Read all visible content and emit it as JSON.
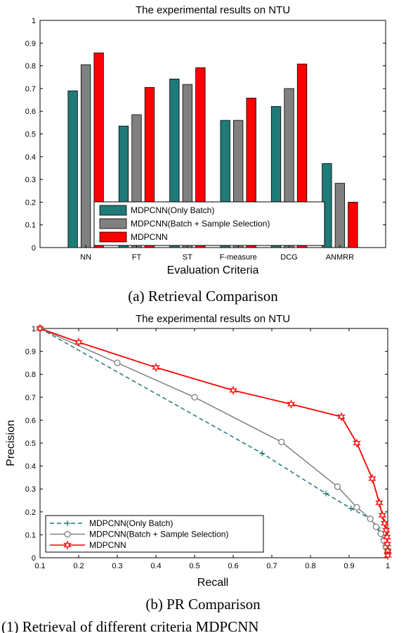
{
  "captions": {
    "a": "(a) Retrieval Comparison",
    "b": "(b) PR Comparison",
    "bottom": "(1) Retrieval of different criteria MDPCNN"
  },
  "chart_data": [
    {
      "type": "bar",
      "title": "The experimental results on NTU",
      "xlabel": "Evaluation Criteria",
      "ylabel": "",
      "categories": [
        "NN",
        "FT",
        "ST",
        "F-measure",
        "DCG",
        "ANMRR"
      ],
      "ylim": [
        0,
        1
      ],
      "yticks": [
        "0",
        "0.1",
        "0.2",
        "0.3",
        "0.4",
        "0.5",
        "0.6",
        "0.7",
        "0.8",
        "0.9",
        "1"
      ],
      "legend_position": "bottom-center",
      "series": [
        {
          "name": "MDPCNN(Only Batch)",
          "color": "#1f7a78",
          "values": [
            0.69,
            0.535,
            0.742,
            0.56,
            0.621,
            0.37
          ]
        },
        {
          "name": "MDPCNN(Batch + Sample Selection)",
          "color": "#808080",
          "values": [
            0.805,
            0.585,
            0.718,
            0.56,
            0.7,
            0.283
          ]
        },
        {
          "name": "MDPCNN",
          "color": "#ff0000",
          "values": [
            0.857,
            0.705,
            0.792,
            0.658,
            0.808,
            0.2
          ]
        }
      ]
    },
    {
      "type": "line",
      "title": "The experimental results on NTU",
      "xlabel": "Recall",
      "ylabel": "Precision",
      "xlim": [
        0.1,
        1
      ],
      "ylim": [
        0,
        1
      ],
      "xticks": [
        "0.1",
        "0.2",
        "0.3",
        "0.4",
        "0.5",
        "0.6",
        "0.7",
        "0.8",
        "0.9",
        "1"
      ],
      "yticks": [
        "0",
        "0.1",
        "0.2",
        "0.3",
        "0.4",
        "0.5",
        "0.6",
        "0.7",
        "0.8",
        "0.9",
        "1"
      ],
      "legend_position": "bottom-left",
      "series": [
        {
          "name": "MDPCNN(Only Batch)",
          "color": "#1f7a78",
          "style": "dashed",
          "marker": "plus",
          "points": [
            [
              0.1,
              1.0
            ],
            [
              0.675,
              0.455
            ],
            [
              0.84,
              0.28
            ],
            [
              0.905,
              0.215
            ],
            [
              0.955,
              0.17
            ],
            [
              0.975,
              0.13
            ],
            [
              0.988,
              0.08
            ],
            [
              0.995,
              0.04
            ],
            [
              1.0,
              0.02
            ]
          ]
        },
        {
          "name": "MDPCNN(Batch + Sample Selection)",
          "color": "#808080",
          "style": "solid",
          "marker": "circle",
          "points": [
            [
              0.1,
              1.0
            ],
            [
              0.3,
              0.85
            ],
            [
              0.5,
              0.7
            ],
            [
              0.725,
              0.505
            ],
            [
              0.87,
              0.31
            ],
            [
              0.92,
              0.22
            ],
            [
              0.955,
              0.17
            ],
            [
              0.97,
              0.135
            ],
            [
              0.982,
              0.105
            ],
            [
              0.99,
              0.075
            ],
            [
              0.995,
              0.05
            ],
            [
              1.0,
              0.03
            ]
          ]
        },
        {
          "name": "MDPCNN",
          "color": "#ff0000",
          "style": "solid",
          "marker": "hexagram",
          "points": [
            [
              0.1,
              1.0
            ],
            [
              0.2,
              0.94
            ],
            [
              0.4,
              0.83
            ],
            [
              0.6,
              0.73
            ],
            [
              0.75,
              0.67
            ],
            [
              0.88,
              0.615
            ],
            [
              0.92,
              0.5
            ],
            [
              0.96,
              0.345
            ],
            [
              0.978,
              0.24
            ],
            [
              0.986,
              0.185
            ],
            [
              0.992,
              0.15
            ],
            [
              0.996,
              0.12
            ],
            [
              0.998,
              0.09
            ],
            [
              0.999,
              0.06
            ],
            [
              1.0,
              0.03
            ],
            [
              1.0,
              0.01
            ]
          ]
        }
      ]
    }
  ]
}
